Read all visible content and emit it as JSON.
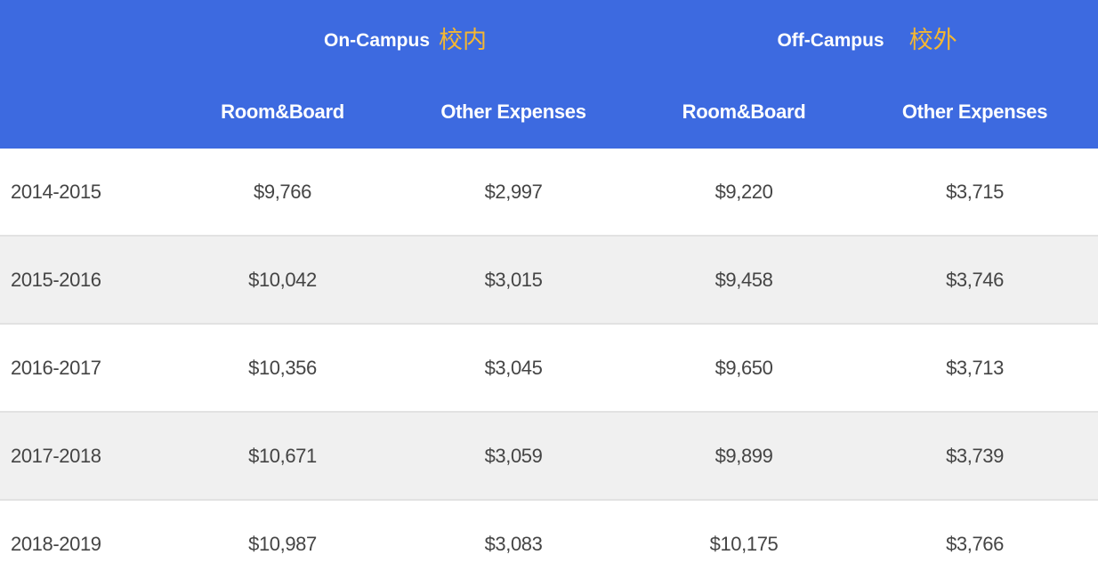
{
  "header": {
    "on_campus": {
      "en": "On-Campus",
      "zh": "校内"
    },
    "off_campus": {
      "en": "Off-Campus",
      "zh": "校外"
    },
    "columns": [
      "Room&Board",
      "Other Expenses",
      "Room&Board",
      "Other Expenses"
    ]
  },
  "rows": [
    {
      "year": "2014-2015",
      "on_room_board": "$9,766",
      "on_other": "$2,997",
      "off_room_board": "$9,220",
      "off_other": "$3,715"
    },
    {
      "year": "2015-2016",
      "on_room_board": "$10,042",
      "on_other": "$3,015",
      "off_room_board": "$9,458",
      "off_other": "$3,746"
    },
    {
      "year": "2016-2017",
      "on_room_board": "$10,356",
      "on_other": "$3,045",
      "off_room_board": "$9,650",
      "off_other": "$3,713"
    },
    {
      "year": "2017-2018",
      "on_room_board": "$10,671",
      "on_other": "$3,059",
      "off_room_board": "$9,899",
      "off_other": "$3,739"
    },
    {
      "year": "2018-2019",
      "on_room_board": "$10,987",
      "on_other": "$3,083",
      "off_room_board": "$10,175",
      "off_other": "$3,766"
    }
  ],
  "colors": {
    "header_bg": "#3d6ae0",
    "header_text": "#ffffff",
    "chinese_accent": "#f5b731",
    "stripe": "#f0f0f0",
    "body_text": "#444444"
  }
}
